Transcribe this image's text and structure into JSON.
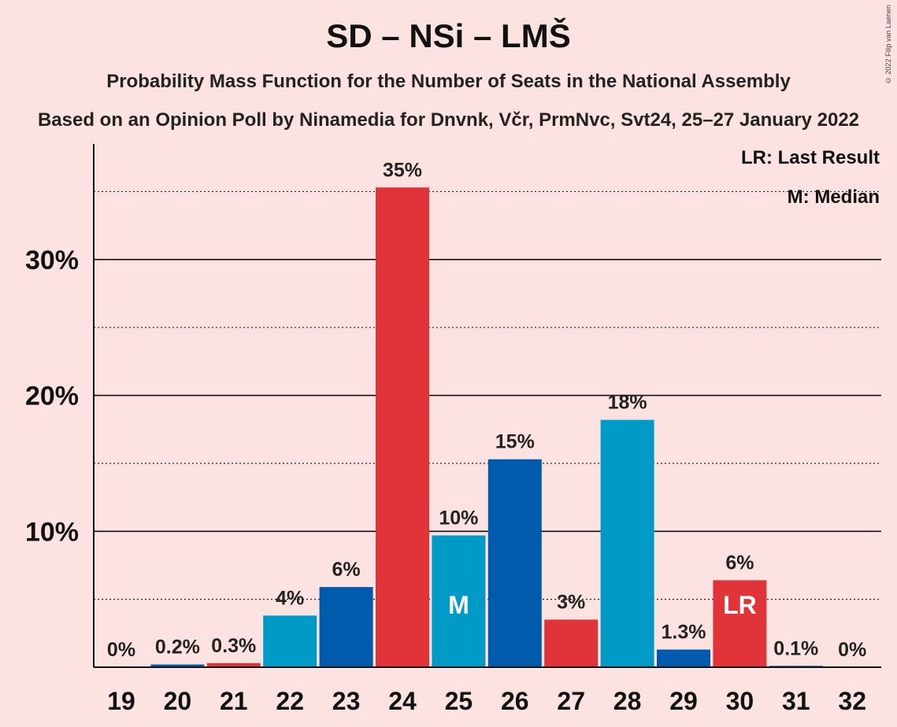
{
  "chart_data": {
    "type": "bar",
    "title": "SD – NSi – LMŠ",
    "subtitle": "Probability Mass Function for the Number of Seats in the National Assembly",
    "source": "Based on an Opinion Poll by Ninamedia for Dnvnk, Včr, PrmNvc, Svt24, 25–27 January 2022",
    "copyright": "© 2022 Filip van Laenen",
    "categories": [
      "19",
      "20",
      "21",
      "22",
      "23",
      "24",
      "25",
      "26",
      "27",
      "28",
      "29",
      "30",
      "31",
      "32"
    ],
    "values": [
      0,
      0.2,
      0.3,
      3.8,
      5.9,
      35.3,
      9.7,
      15.3,
      3.5,
      18.2,
      1.3,
      6.4,
      0.1,
      0
    ],
    "value_labels": [
      "0%",
      "0.2%",
      "0.3%",
      "4%",
      "6%",
      "35%",
      "10%",
      "15%",
      "3%",
      "18%",
      "1.3%",
      "6%",
      "0.1%",
      "0%"
    ],
    "bar_colors": [
      "#005bac",
      "#005bac",
      "#e03438",
      "#009ac7",
      "#005bac",
      "#e03438",
      "#009ac7",
      "#005bac",
      "#e03438",
      "#009ac7",
      "#005bac",
      "#e03438",
      "#005bac",
      "#005bac"
    ],
    "bar_markers": {
      "25": "M",
      "30": "LR"
    },
    "ylim": [
      0,
      38.5
    ],
    "yticks": [
      10,
      20,
      30
    ],
    "ytick_labels": [
      "10%",
      "20%",
      "30%"
    ],
    "minor_gridlines": [
      5,
      15,
      25,
      35
    ],
    "legend": {
      "position": "top-right",
      "items": [
        "LR: Last Result",
        "M: Median"
      ]
    }
  }
}
